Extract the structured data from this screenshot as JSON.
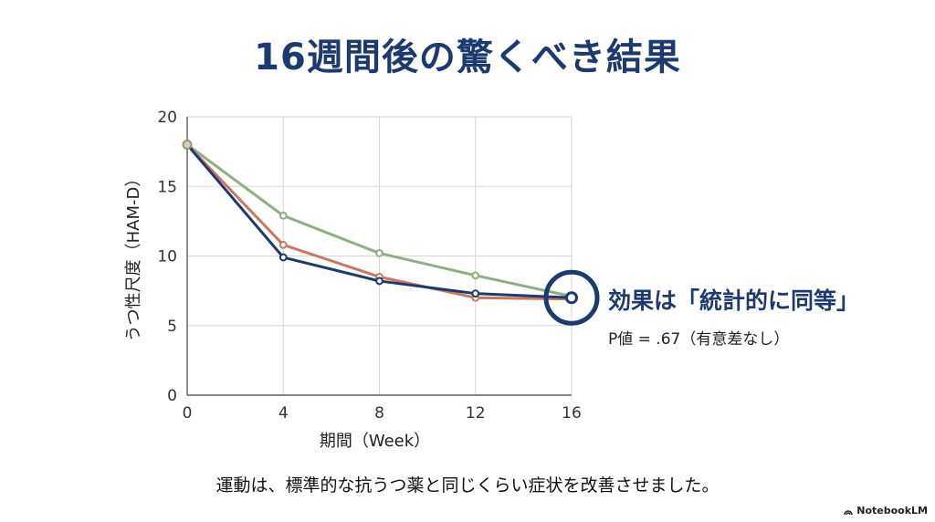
{
  "title": "16週間後の驚くべき結果",
  "annotation": {
    "headline": "効果は「統計的に同等」",
    "detail": "P値 = .67（有意差なし）"
  },
  "caption": "運動は、標準的な抗うつ薬と同じくらい症状を改善させました。",
  "brand": "NotebookLM",
  "chart_data": {
    "type": "line",
    "x": [
      0,
      4,
      8,
      12,
      16
    ],
    "xlabel": "期間（Week）",
    "ylabel": "うつ性尺度（HAM-D）",
    "xlim": [
      0,
      16
    ],
    "ylim": [
      0,
      20
    ],
    "xticks": [
      0,
      4,
      8,
      12,
      16
    ],
    "yticks": [
      0,
      5,
      10,
      15,
      20
    ],
    "grid": true,
    "series": [
      {
        "color": "#8fae84",
        "values": [
          18,
          12.9,
          10.2,
          8.6,
          7.1
        ]
      },
      {
        "color": "#c9775f",
        "values": [
          18,
          10.8,
          8.5,
          7.0,
          6.9
        ]
      },
      {
        "color": "#1d3a6e",
        "values": [
          18,
          9.9,
          8.2,
          7.3,
          7.0
        ]
      }
    ],
    "highlight": {
      "x": 16,
      "y": 7.0,
      "color": "#1d3a6e"
    }
  }
}
